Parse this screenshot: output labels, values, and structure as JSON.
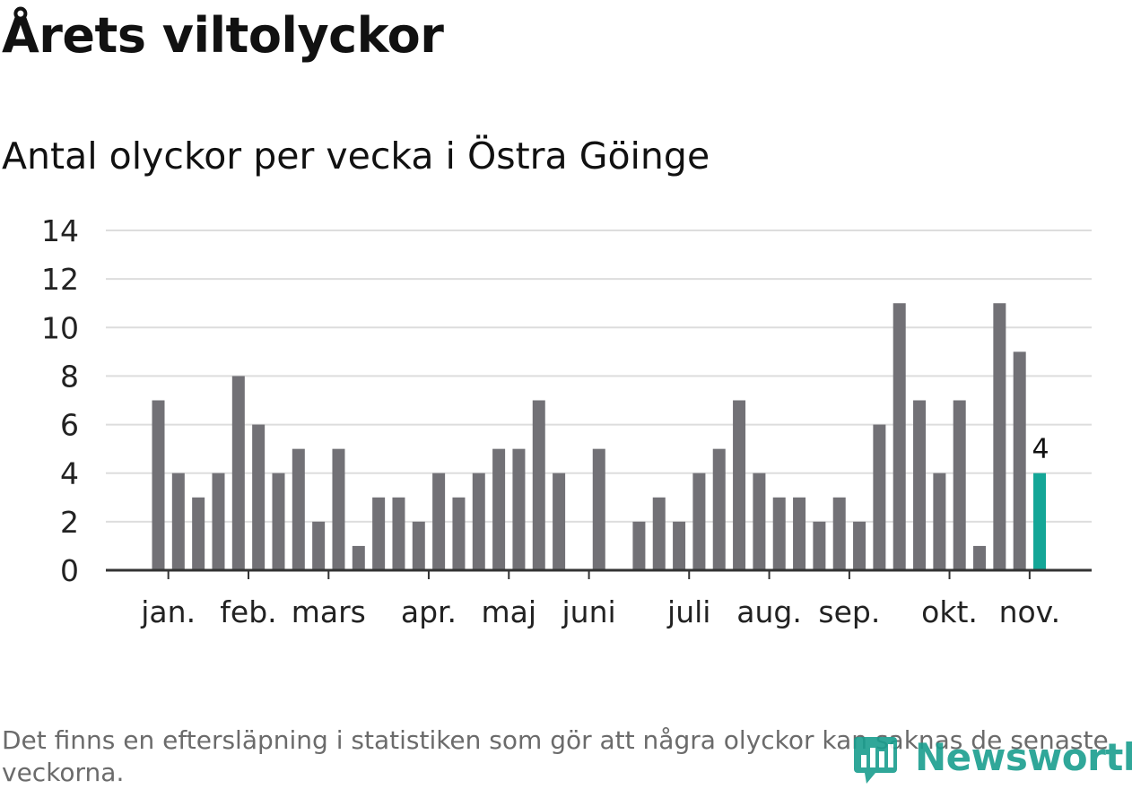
{
  "header": {
    "title": "Årets viltolyckor",
    "subtitle": "Antal olyckor per vecka i Östra Göinge"
  },
  "footnote": "Det finns en eftersläpning i statistiken som gör att några olyckor kan saknas de senaste veckorna.",
  "logo": {
    "text": "Newsworthy",
    "icon": "newsworthy-logo-icon"
  },
  "colors": {
    "bar": "#727176",
    "highlight": "#14a697",
    "grid": "#dddddd",
    "axis": "#333333",
    "text": "#222222"
  },
  "chart_data": {
    "type": "bar",
    "title": "Antal olyckor per vecka i Östra Göinge",
    "xlabel": "",
    "ylabel": "",
    "ylim": [
      0,
      14
    ],
    "yticks": [
      0,
      2,
      4,
      6,
      8,
      10,
      12,
      14
    ],
    "grid": true,
    "week_slots": 45,
    "values": [
      7,
      4,
      3,
      4,
      8,
      6,
      4,
      5,
      2,
      5,
      1,
      3,
      3,
      2,
      4,
      3,
      4,
      5,
      5,
      7,
      4,
      0,
      5,
      0,
      2,
      3,
      2,
      4,
      5,
      7,
      4,
      3,
      3,
      2,
      3,
      2,
      6,
      11,
      7,
      4,
      7,
      1,
      11,
      9,
      4
    ],
    "highlight_index": 44,
    "highlight_label": "4",
    "months": [
      {
        "label": "jan.",
        "week_index": 0.5
      },
      {
        "label": "feb.",
        "week_index": 4.5
      },
      {
        "label": "mars",
        "week_index": 8.5
      },
      {
        "label": "apr.",
        "week_index": 13.5
      },
      {
        "label": "maj",
        "week_index": 17.5
      },
      {
        "label": "juni",
        "week_index": 21.5
      },
      {
        "label": "juli",
        "week_index": 26.5
      },
      {
        "label": "aug.",
        "week_index": 30.5
      },
      {
        "label": "sep.",
        "week_index": 34.5
      },
      {
        "label": "okt.",
        "week_index": 39.5
      },
      {
        "label": "nov.",
        "week_index": 43.5
      }
    ]
  }
}
